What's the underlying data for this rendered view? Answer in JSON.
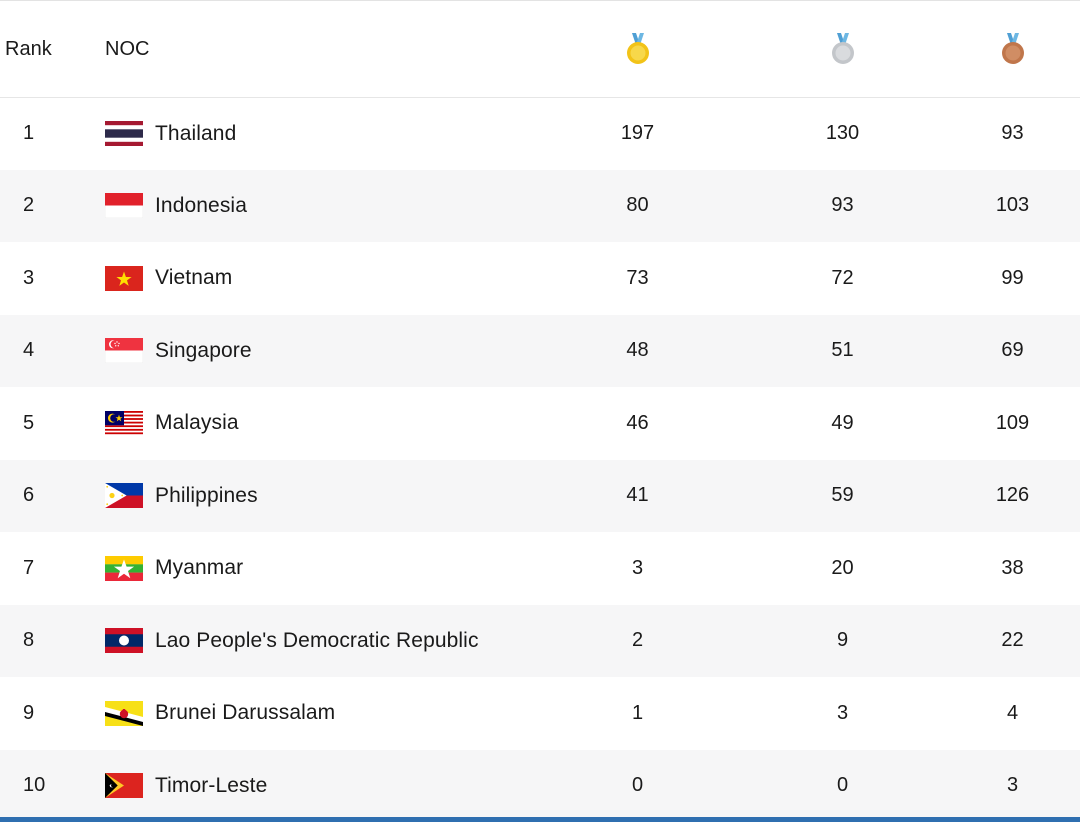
{
  "header": {
    "rank_label": "Rank",
    "noc_label": "NOC",
    "gold_icon": "gold-medal-icon",
    "silver_icon": "silver-medal-icon",
    "bronze_icon": "bronze-medal-icon"
  },
  "colors": {
    "gold": "#f2c318",
    "silver": "#c9ccd0",
    "bronze": "#c77a4e",
    "ribbon": "#5aa5d6",
    "accent_bar": "#2f6fb0",
    "stripe": "#f6f6f7"
  },
  "rows": [
    {
      "rank": "1",
      "country": "Thailand",
      "flag": "thailand-flag-icon",
      "gold": "197",
      "silver": "130",
      "bronze": "93"
    },
    {
      "rank": "2",
      "country": "Indonesia",
      "flag": "indonesia-flag-icon",
      "gold": "80",
      "silver": "93",
      "bronze": "103"
    },
    {
      "rank": "3",
      "country": "Vietnam",
      "flag": "vietnam-flag-icon",
      "gold": "73",
      "silver": "72",
      "bronze": "99"
    },
    {
      "rank": "4",
      "country": "Singapore",
      "flag": "singapore-flag-icon",
      "gold": "48",
      "silver": "51",
      "bronze": "69"
    },
    {
      "rank": "5",
      "country": "Malaysia",
      "flag": "malaysia-flag-icon",
      "gold": "46",
      "silver": "49",
      "bronze": "109"
    },
    {
      "rank": "6",
      "country": "Philippines",
      "flag": "philippines-flag-icon",
      "gold": "41",
      "silver": "59",
      "bronze": "126"
    },
    {
      "rank": "7",
      "country": "Myanmar",
      "flag": "myanmar-flag-icon",
      "gold": "3",
      "silver": "20",
      "bronze": "38"
    },
    {
      "rank": "8",
      "country": "Lao People's Democratic Republic",
      "flag": "laos-flag-icon",
      "gold": "2",
      "silver": "9",
      "bronze": "22"
    },
    {
      "rank": "9",
      "country": "Brunei Darussalam",
      "flag": "brunei-flag-icon",
      "gold": "1",
      "silver": "3",
      "bronze": "4"
    },
    {
      "rank": "10",
      "country": "Timor-Leste",
      "flag": "timor-leste-flag-icon",
      "gold": "0",
      "silver": "0",
      "bronze": "3"
    }
  ]
}
